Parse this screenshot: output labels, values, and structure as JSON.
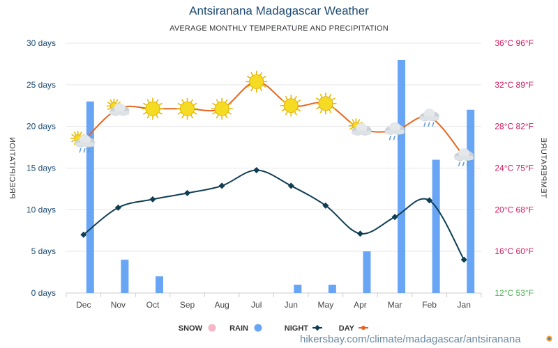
{
  "page": {
    "title": "Antsiranana Madagascar Weather",
    "subtitle": "AVERAGE MONTHLY TEMPERATURE AND PRECIPITATION",
    "source": "hikersbay.com/climate/madagascar/antsiranana"
  },
  "colors": {
    "day": "#e8641e",
    "night": "#0f3d53",
    "rain": "#69a5f5",
    "snow": "#f5b8c8",
    "left_axis": "#1b4a73",
    "right_axis": "#d4185f",
    "right_axis_bottom": "#4caf50"
  },
  "chart_data": {
    "type": "bar+line",
    "x_axis_mirrored": true,
    "categories": [
      "Jan",
      "Feb",
      "Mar",
      "Apr",
      "May",
      "Jun",
      "Jul",
      "Aug",
      "Sep",
      "Oct",
      "Nov",
      "Dec"
    ],
    "left_axis": {
      "label": "PRECIPITATION",
      "ticks": [
        "0 days",
        "5 days",
        "10 days",
        "15 days",
        "20 days",
        "25 days",
        "30 days"
      ],
      "range": [
        0,
        30
      ]
    },
    "right_axis": {
      "label": "TEMPERATURE",
      "ticks": [
        "12°C 53°F",
        "16°C 60°F",
        "20°C 68°F",
        "24°C 75°F",
        "28°C 82°F",
        "32°C 89°F",
        "36°C 96°F"
      ],
      "range": [
        12,
        36
      ]
    },
    "series": [
      {
        "name": "DAY",
        "type": "line",
        "axis": "right",
        "unit": "°C",
        "values": [
          25.1,
          28.9,
          27.6,
          27.8,
          30.2,
          30.0,
          32.3,
          29.7,
          29.7,
          29.7,
          29.7,
          26.6
        ]
      },
      {
        "name": "NIGHT",
        "type": "line",
        "axis": "right",
        "unit": "°C",
        "values": [
          15.2,
          20.9,
          19.3,
          17.7,
          20.4,
          22.3,
          23.8,
          22.3,
          21.6,
          21.0,
          20.2,
          17.6
        ]
      },
      {
        "name": "RAIN",
        "type": "bar",
        "axis": "left",
        "unit": "days",
        "values": [
          22,
          16,
          28,
          5,
          1,
          1,
          0,
          0,
          0,
          2,
          4,
          23
        ]
      },
      {
        "name": "SNOW",
        "type": "bar",
        "axis": "left",
        "unit": "days",
        "values": [
          0,
          0,
          0,
          0,
          0,
          0,
          0,
          0,
          0,
          0,
          0,
          0
        ]
      }
    ],
    "weather_icons": [
      "cloud-rain",
      "cloud-rain",
      "cloud-rain",
      "sun-cloud",
      "sun",
      "sun",
      "sun",
      "sun",
      "sun",
      "sun",
      "sun-cloud",
      "sun-cloud-rain"
    ],
    "grid": true,
    "legend_position": "bottom",
    "legend": [
      "DAY",
      "NIGHT",
      "RAIN",
      "SNOW"
    ]
  }
}
